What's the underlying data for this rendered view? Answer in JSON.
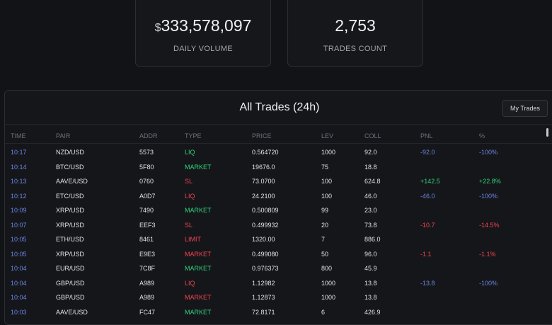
{
  "stats": [
    {
      "prefix": "$",
      "value": "333,578,097",
      "label": "DAILY VOLUME"
    },
    {
      "value": "2,753",
      "label": "TRADES COUNT"
    }
  ],
  "table": {
    "title": "All Trades (24h)",
    "button": "My Trades",
    "columns": [
      "TIME",
      "PAIR",
      "ADDR",
      "TYPE",
      "PRICE",
      "LEV",
      "COLL",
      "PNL",
      "%"
    ],
    "rows": [
      {
        "time": "10:17",
        "pair": "NZD/USD",
        "addr": "5573",
        "type": "LIQ",
        "type_color": "#2ed47a",
        "price": "0.564720",
        "lev": "1000",
        "coll": "92.0",
        "pnl": "-92.0",
        "pct": "-100%",
        "pnl_color": "#6b86e0"
      },
      {
        "time": "10:14",
        "pair": "BTC/USD",
        "addr": "5F80",
        "type": "MARKET",
        "type_color": "#2ed47a",
        "price": "19676.0",
        "lev": "75",
        "coll": "18.8"
      },
      {
        "time": "10:13",
        "pair": "AAVE/USD",
        "addr": "0760",
        "type": "SL",
        "type_color": "#f0454f",
        "price": "73.0700",
        "lev": "100",
        "coll": "624.8",
        "pnl": "+142.5",
        "pct": "+22.8%",
        "pnl_color": "#2ed47a"
      },
      {
        "time": "10:12",
        "pair": "ETC/USD",
        "addr": "A0D7",
        "type": "LIQ",
        "type_color": "#f0454f",
        "price": "24.2100",
        "lev": "100",
        "coll": "46.0",
        "pnl": "-46.0",
        "pct": "-100%",
        "pnl_color": "#6b86e0"
      },
      {
        "time": "10:09",
        "pair": "XRP/USD",
        "addr": "7490",
        "type": "MARKET",
        "type_color": "#2ed47a",
        "price": "0.500809",
        "lev": "99",
        "coll": "23.0"
      },
      {
        "time": "10:07",
        "pair": "XRP/USD",
        "addr": "EEF3",
        "type": "SL",
        "type_color": "#f0454f",
        "price": "0.499932",
        "lev": "20",
        "coll": "73.8",
        "pnl": "-10.7",
        "pct": "-14.5%",
        "pnl_color": "#f0454f"
      },
      {
        "time": "10:05",
        "pair": "ETH/USD",
        "addr": "8461",
        "type": "LIMIT",
        "type_color": "#f0454f",
        "price": "1320.00",
        "lev": "7",
        "coll": "886.0"
      },
      {
        "time": "10:05",
        "pair": "XRP/USD",
        "addr": "E9E3",
        "type": "MARKET",
        "type_color": "#f0454f",
        "price": "0.499080",
        "lev": "50",
        "coll": "96.0",
        "pnl": "-1.1",
        "pct": "-1.1%",
        "pnl_color": "#f0454f"
      },
      {
        "time": "10:04",
        "pair": "EUR/USD",
        "addr": "7C8F",
        "type": "MARKET",
        "type_color": "#2ed47a",
        "price": "0.976373",
        "lev": "800",
        "coll": "45.9"
      },
      {
        "time": "10:04",
        "pair": "GBP/USD",
        "addr": "A989",
        "type": "LIQ",
        "type_color": "#f0454f",
        "price": "1.12982",
        "lev": "1000",
        "coll": "13.8",
        "pnl": "-13.8",
        "pct": "-100%",
        "pnl_color": "#6b86e0"
      },
      {
        "time": "10:04",
        "pair": "GBP/USD",
        "addr": "A989",
        "type": "MARKET",
        "type_color": "#f0454f",
        "price": "1.12873",
        "lev": "1000",
        "coll": "13.8"
      },
      {
        "time": "10:03",
        "pair": "AAVE/USD",
        "addr": "FC47",
        "type": "MARKET",
        "type_color": "#2ed47a",
        "price": "72.8171",
        "lev": "6",
        "coll": "426.9"
      }
    ]
  }
}
